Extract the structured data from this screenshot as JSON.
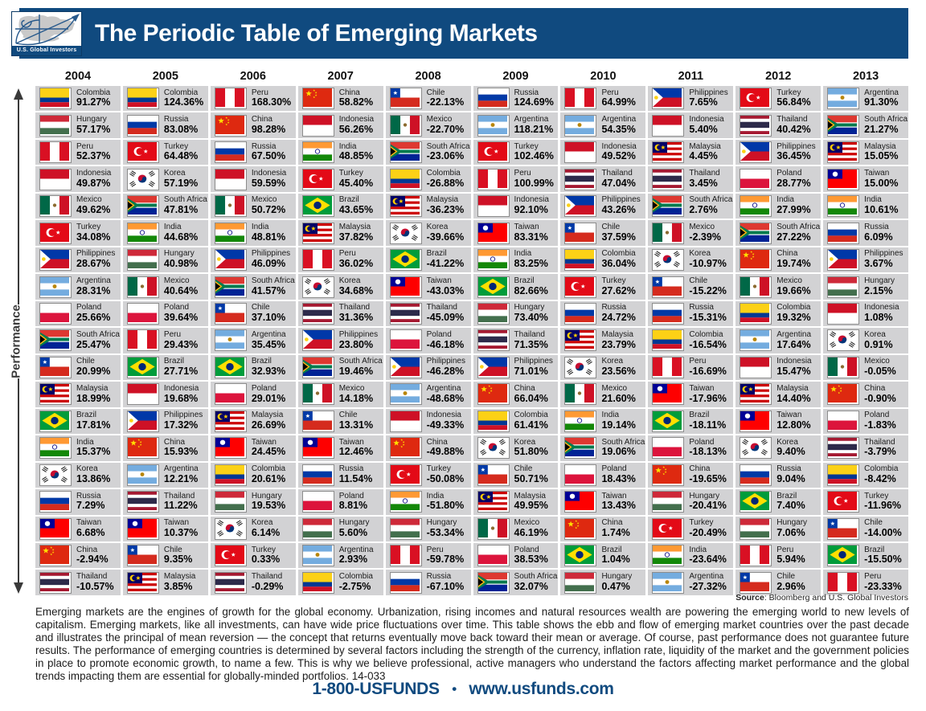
{
  "header": {
    "title": "The Periodic Table of Emerging Markets",
    "logo_text": "U.S. Global Investors"
  },
  "axis_label": "Performance",
  "colors": {
    "header_navy": "#104a7f",
    "cell_gray": "#d2d2d4",
    "footer_navy": "#104a7f"
  },
  "source": {
    "label": "Source",
    "rest": ": Bloomberg and U.S. Global Investors"
  },
  "description": "Emerging markets are the engines of growth for the global economy. Urbanization, rising incomes and natural resources wealth are powering the emerging world to new levels of capitalism. Emerging markets, like all investments, can have wide price fluctuations over time. This table shows the ebb and flow of emerging market countries over the past decade and illustrates the principal of mean reversion — the concept that returns eventually move back toward their mean or average. Of course, past performance does not guarantee future results. The performance of emerging countries is determined by several factors including the strength of the currency, inflation rate, liquidity of the market and the government policies in place to promote economic growth, to name a few. This is why we believe professional, active managers who understand the factors affecting market performance and the global trends impacting them are essential for globally-minded portfolios. 14-033",
  "footer": {
    "phone": "1-800-USFUNDS",
    "separator": "•",
    "website": "www.usfunds.com"
  },
  "chart_data": {
    "type": "table",
    "title": "The Periodic Table of Emerging Markets",
    "ylabel": "Performance",
    "years": [
      "2004",
      "2005",
      "2006",
      "2007",
      "2008",
      "2009",
      "2010",
      "2011",
      "2012",
      "2013"
    ],
    "columns": [
      {
        "year": "2004",
        "entries": [
          {
            "country": "Colombia",
            "value": "91.27%"
          },
          {
            "country": "Hungary",
            "value": "57.17%"
          },
          {
            "country": "Peru",
            "value": "52.37%"
          },
          {
            "country": "Indonesia",
            "value": "49.87%"
          },
          {
            "country": "Mexico",
            "value": "49.62%"
          },
          {
            "country": "Turkey",
            "value": "34.08%"
          },
          {
            "country": "Philippines",
            "value": "28.67%"
          },
          {
            "country": "Argentina",
            "value": "28.31%"
          },
          {
            "country": "Poland",
            "value": "25.66%"
          },
          {
            "country": "South Africa",
            "value": "25.47%"
          },
          {
            "country": "Chile",
            "value": "20.99%"
          },
          {
            "country": "Malaysia",
            "value": "18.99%"
          },
          {
            "country": "Brazil",
            "value": "17.81%"
          },
          {
            "country": "India",
            "value": "15.37%"
          },
          {
            "country": "Korea",
            "value": "13.86%"
          },
          {
            "country": "Russia",
            "value": "7.29%"
          },
          {
            "country": "Taiwan",
            "value": "6.68%"
          },
          {
            "country": "China",
            "value": "-2.94%"
          },
          {
            "country": "Thailand",
            "value": "-10.57%"
          }
        ]
      },
      {
        "year": "2005",
        "entries": [
          {
            "country": "Colombia",
            "value": "124.36%"
          },
          {
            "country": "Russia",
            "value": "83.08%"
          },
          {
            "country": "Turkey",
            "value": "64.48%"
          },
          {
            "country": "Korea",
            "value": "57.19%"
          },
          {
            "country": "South Africa",
            "value": "47.81%"
          },
          {
            "country": "India",
            "value": "44.68%"
          },
          {
            "country": "Hungary",
            "value": "40.98%"
          },
          {
            "country": "Mexico",
            "value": "40.64%"
          },
          {
            "country": "Poland",
            "value": "39.64%"
          },
          {
            "country": "Peru",
            "value": "29.43%"
          },
          {
            "country": "Brazil",
            "value": "27.71%"
          },
          {
            "country": "Indonesia",
            "value": "19.68%"
          },
          {
            "country": "Philippines",
            "value": "17.32%"
          },
          {
            "country": "China",
            "value": "15.93%"
          },
          {
            "country": "Argentina",
            "value": "12.21%"
          },
          {
            "country": "Thailand",
            "value": "11.22%"
          },
          {
            "country": "Taiwan",
            "value": "10.37%"
          },
          {
            "country": "Chile",
            "value": "9.35%"
          },
          {
            "country": "Malaysia",
            "value": "3.85%"
          }
        ]
      },
      {
        "year": "2006",
        "entries": [
          {
            "country": "Peru",
            "value": "168.30%"
          },
          {
            "country": "China",
            "value": "98.28%"
          },
          {
            "country": "Russia",
            "value": "67.50%"
          },
          {
            "country": "Indonesia",
            "value": "59.59%"
          },
          {
            "country": "Mexico",
            "value": "50.72%"
          },
          {
            "country": "India",
            "value": "48.81%"
          },
          {
            "country": "Philippines",
            "value": "46.09%"
          },
          {
            "country": "South Africa",
            "value": "41.57%"
          },
          {
            "country": "Chile",
            "value": "37.10%"
          },
          {
            "country": "Argentina",
            "value": "35.45%"
          },
          {
            "country": "Brazil",
            "value": "32.93%"
          },
          {
            "country": "Poland",
            "value": "29.01%"
          },
          {
            "country": "Malaysia",
            "value": "26.69%"
          },
          {
            "country": "Taiwan",
            "value": "24.45%"
          },
          {
            "country": "Colombia",
            "value": "20.61%"
          },
          {
            "country": "Hungary",
            "value": "19.53%"
          },
          {
            "country": "Korea",
            "value": "6.14%"
          },
          {
            "country": "Turkey",
            "value": "0.33%"
          },
          {
            "country": "Thailand",
            "value": "-0.29%"
          }
        ]
      },
      {
        "year": "2007",
        "entries": [
          {
            "country": "China",
            "value": "58.82%"
          },
          {
            "country": "Indonesia",
            "value": "56.26%"
          },
          {
            "country": "India",
            "value": "48.85%"
          },
          {
            "country": "Turkey",
            "value": "45.40%"
          },
          {
            "country": "Brazil",
            "value": "43.65%"
          },
          {
            "country": "Malaysia",
            "value": "37.82%"
          },
          {
            "country": "Peru",
            "value": "36.02%"
          },
          {
            "country": "Korea",
            "value": "34.68%"
          },
          {
            "country": "Thailand",
            "value": "31.36%"
          },
          {
            "country": "Philippines",
            "value": "23.80%"
          },
          {
            "country": "South Africa",
            "value": "19.46%"
          },
          {
            "country": "Mexico",
            "value": "14.18%"
          },
          {
            "country": "Chile",
            "value": "13.31%"
          },
          {
            "country": "Taiwan",
            "value": "12.46%"
          },
          {
            "country": "Russia",
            "value": "11.54%"
          },
          {
            "country": "Poland",
            "value": "8.81%"
          },
          {
            "country": "Hungary",
            "value": "5.60%"
          },
          {
            "country": "Argentina",
            "value": "2.93%"
          },
          {
            "country": "Colombia",
            "value": "-2.75%"
          }
        ]
      },
      {
        "year": "2008",
        "entries": [
          {
            "country": "Chile",
            "value": "-22.13%"
          },
          {
            "country": "Mexico",
            "value": "-22.70%"
          },
          {
            "country": "South Africa",
            "value": "-23.06%"
          },
          {
            "country": "Colombia",
            "value": "-26.88%"
          },
          {
            "country": "Malaysia",
            "value": "-36.23%"
          },
          {
            "country": "Korea",
            "value": "-39.66%"
          },
          {
            "country": "Brazil",
            "value": "-41.22%"
          },
          {
            "country": "Taiwan",
            "value": "-43.03%"
          },
          {
            "country": "Thailand",
            "value": "-45.09%"
          },
          {
            "country": "Poland",
            "value": "-46.18%"
          },
          {
            "country": "Philippines",
            "value": "-46.28%"
          },
          {
            "country": "Argentina",
            "value": "-48.68%"
          },
          {
            "country": "Indonesia",
            "value": "-49.33%"
          },
          {
            "country": "China",
            "value": "-49.88%"
          },
          {
            "country": "Turkey",
            "value": "-50.08%"
          },
          {
            "country": "India",
            "value": "-51.80%"
          },
          {
            "country": "Hungary",
            "value": "-53.34%"
          },
          {
            "country": "Peru",
            "value": "-59.78%"
          },
          {
            "country": "Russia",
            "value": "-67.10%"
          }
        ]
      },
      {
        "year": "2009",
        "entries": [
          {
            "country": "Russia",
            "value": "124.69%"
          },
          {
            "country": "Argentina",
            "value": "118.21%"
          },
          {
            "country": "Turkey",
            "value": "102.46%"
          },
          {
            "country": "Peru",
            "value": "100.99%"
          },
          {
            "country": "Indonesia",
            "value": "92.10%"
          },
          {
            "country": "Taiwan",
            "value": "83.31%"
          },
          {
            "country": "India",
            "value": "83.25%"
          },
          {
            "country": "Brazil",
            "value": "82.66%"
          },
          {
            "country": "Hungary",
            "value": "73.40%"
          },
          {
            "country": "Thailand",
            "value": "71.35%"
          },
          {
            "country": "Philippines",
            "value": "71.01%"
          },
          {
            "country": "China",
            "value": "66.04%"
          },
          {
            "country": "Colombia",
            "value": "61.41%"
          },
          {
            "country": "Korea",
            "value": "51.80%"
          },
          {
            "country": "Chile",
            "value": "50.71%"
          },
          {
            "country": "Malaysia",
            "value": "49.95%"
          },
          {
            "country": "Mexico",
            "value": "46.19%"
          },
          {
            "country": "Poland",
            "value": "38.53%"
          },
          {
            "country": "South Africa",
            "value": "32.07%"
          }
        ]
      },
      {
        "year": "2010",
        "entries": [
          {
            "country": "Peru",
            "value": "64.99%"
          },
          {
            "country": "Argentina",
            "value": "54.35%"
          },
          {
            "country": "Indonesia",
            "value": "49.52%"
          },
          {
            "country": "Thailand",
            "value": "47.04%"
          },
          {
            "country": "Philippines",
            "value": "43.26%"
          },
          {
            "country": "Chile",
            "value": "37.59%"
          },
          {
            "country": "Colombia",
            "value": "36.04%"
          },
          {
            "country": "Turkey",
            "value": "27.62%"
          },
          {
            "country": "Russia",
            "value": "24.72%"
          },
          {
            "country": "Malaysia",
            "value": "23.79%"
          },
          {
            "country": "Korea",
            "value": "23.56%"
          },
          {
            "country": "Mexico",
            "value": "21.60%"
          },
          {
            "country": "India",
            "value": "19.14%"
          },
          {
            "country": "South Africa",
            "value": "19.06%"
          },
          {
            "country": "Poland",
            "value": "18.43%"
          },
          {
            "country": "Taiwan",
            "value": "13.43%"
          },
          {
            "country": "China",
            "value": "1.74%"
          },
          {
            "country": "Brazil",
            "value": "1.04%"
          },
          {
            "country": "Hungary",
            "value": "0.47%"
          }
        ]
      },
      {
        "year": "2011",
        "entries": [
          {
            "country": "Philippines",
            "value": "7.65%"
          },
          {
            "country": "Indonesia",
            "value": "5.40%"
          },
          {
            "country": "Malaysia",
            "value": "4.45%"
          },
          {
            "country": "Thailand",
            "value": "3.45%"
          },
          {
            "country": "South Africa",
            "value": "2.76%"
          },
          {
            "country": "Mexico",
            "value": "-2.39%"
          },
          {
            "country": "Korea",
            "value": "-10.97%"
          },
          {
            "country": "Chile",
            "value": "-15.22%"
          },
          {
            "country": "Russia",
            "value": "-15.31%"
          },
          {
            "country": "Colombia",
            "value": "-16.54%"
          },
          {
            "country": "Peru",
            "value": "-16.69%"
          },
          {
            "country": "Taiwan",
            "value": "-17.96%"
          },
          {
            "country": "Brazil",
            "value": "-18.11%"
          },
          {
            "country": "Poland",
            "value": "-18.13%"
          },
          {
            "country": "China",
            "value": "-19.65%"
          },
          {
            "country": "Hungary",
            "value": "-20.41%"
          },
          {
            "country": "Turkey",
            "value": "-20.49%"
          },
          {
            "country": "India",
            "value": "-23.64%"
          },
          {
            "country": "Argentina",
            "value": "-27.32%"
          }
        ]
      },
      {
        "year": "2012",
        "entries": [
          {
            "country": "Turkey",
            "value": "56.84%"
          },
          {
            "country": "Thailand",
            "value": "40.42%"
          },
          {
            "country": "Philippines",
            "value": "36.45%"
          },
          {
            "country": "Poland",
            "value": "28.77%"
          },
          {
            "country": "India",
            "value": "27.99%"
          },
          {
            "country": "South Africa",
            "value": "27.22%"
          },
          {
            "country": "China",
            "value": "19.74%"
          },
          {
            "country": "Mexico",
            "value": "19.66%"
          },
          {
            "country": "Colombia",
            "value": "19.32%"
          },
          {
            "country": "Argentina",
            "value": "17.64%"
          },
          {
            "country": "Indonesia",
            "value": "15.47%"
          },
          {
            "country": "Malaysia",
            "value": "14.40%"
          },
          {
            "country": "Taiwan",
            "value": "12.80%"
          },
          {
            "country": "Korea",
            "value": "9.40%"
          },
          {
            "country": "Russia",
            "value": "9.04%"
          },
          {
            "country": "Brazil",
            "value": "7.40%"
          },
          {
            "country": "Hungary",
            "value": "7.06%"
          },
          {
            "country": "Peru",
            "value": "5.94%"
          },
          {
            "country": "Chile",
            "value": "2.96%"
          }
        ]
      },
      {
        "year": "2013",
        "entries": [
          {
            "country": "Argentina",
            "value": "91.30%"
          },
          {
            "country": "South Africa",
            "value": "21.27%"
          },
          {
            "country": "Malaysia",
            "value": "15.05%"
          },
          {
            "country": "Taiwan",
            "value": "15.00%"
          },
          {
            "country": "India",
            "value": "10.61%"
          },
          {
            "country": "Russia",
            "value": "6.09%"
          },
          {
            "country": "Philippines",
            "value": "3.67%"
          },
          {
            "country": "Hungary",
            "value": "2.15%"
          },
          {
            "country": "Indonesia",
            "value": "1.08%"
          },
          {
            "country": "Korea",
            "value": "0.91%"
          },
          {
            "country": "Mexico",
            "value": "-0.05%"
          },
          {
            "country": "China",
            "value": "-0.90%"
          },
          {
            "country": "Poland",
            "value": "-1.83%"
          },
          {
            "country": "Thailand",
            "value": "-3.79%"
          },
          {
            "country": "Colombia",
            "value": "-8.42%"
          },
          {
            "country": "Turkey",
            "value": "-11.96%"
          },
          {
            "country": "Chile",
            "value": "-14.00%"
          },
          {
            "country": "Brazil",
            "value": "-15.50%"
          },
          {
            "country": "Peru",
            "value": "-23.33%"
          }
        ]
      }
    ]
  }
}
